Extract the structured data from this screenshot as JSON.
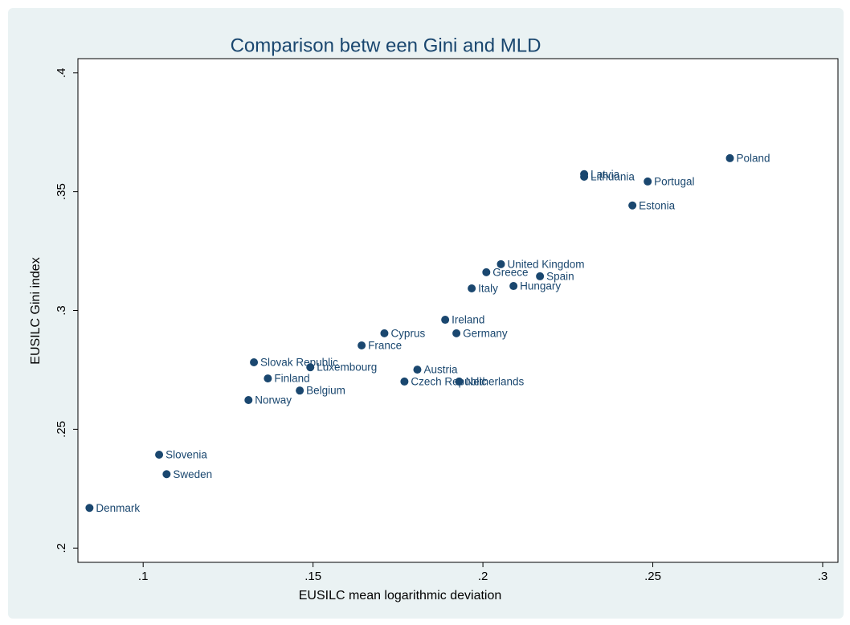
{
  "chart_data": {
    "type": "scatter",
    "title": "Comparison betw een Gini and MLD",
    "x_label": "EUSILC mean logarithmic deviation",
    "y_label": "EUSILC Gini index",
    "color": "#1a476f",
    "labels": [
      "Poland",
      "Latvia",
      "Lithuania",
      "Portugal",
      "Estonia",
      "United Kingdom",
      "Greece",
      "Spain",
      "Italy",
      "Hungary",
      "Ireland",
      "Cyprus",
      "Germany",
      "France",
      "Slovak Republic",
      "Luxembourg",
      "Austria",
      "Finland",
      "Czech Republic",
      "Netherlands",
      "Belgium",
      "Norway",
      "Slovenia",
      "Sweden",
      "Denmark"
    ],
    "x": [
      0.2727,
      0.2298,
      0.2298,
      0.2485,
      0.244,
      0.2053,
      0.201,
      0.2168,
      0.1967,
      0.209,
      0.1889,
      0.171,
      0.1922,
      0.1643,
      0.1326,
      0.1492,
      0.1807,
      0.1367,
      0.1769,
      0.193,
      0.1461,
      0.131,
      0.1047,
      0.1069,
      0.0842
    ],
    "values": [
      0.3641,
      0.3574,
      0.3563,
      0.3543,
      0.3442,
      0.3195,
      0.3161,
      0.3144,
      0.3093,
      0.3103,
      0.2961,
      0.2904,
      0.2904,
      0.2853,
      0.2782,
      0.2761,
      0.2751,
      0.2714,
      0.2701,
      0.2701,
      0.2663,
      0.2623,
      0.2393,
      0.2311,
      0.2169
    ],
    "xlim": [
      0.0808,
      0.3045
    ],
    "ylim": [
      0.194,
      0.406
    ],
    "xticks": [
      {
        "value": 0.1,
        "label": ".1"
      },
      {
        "value": 0.15,
        "label": ".15"
      },
      {
        "value": 0.2,
        "label": ".2"
      },
      {
        "value": 0.25,
        "label": ".25"
      },
      {
        "value": 0.3,
        "label": ".3"
      }
    ],
    "yticks": [
      {
        "value": 0.2,
        "label": ".2"
      },
      {
        "value": 0.25,
        "label": ".25"
      },
      {
        "value": 0.3,
        "label": ".3"
      },
      {
        "value": 0.35,
        "label": ".35"
      },
      {
        "value": 0.4,
        "label": ".4"
      }
    ],
    "grid": false
  }
}
